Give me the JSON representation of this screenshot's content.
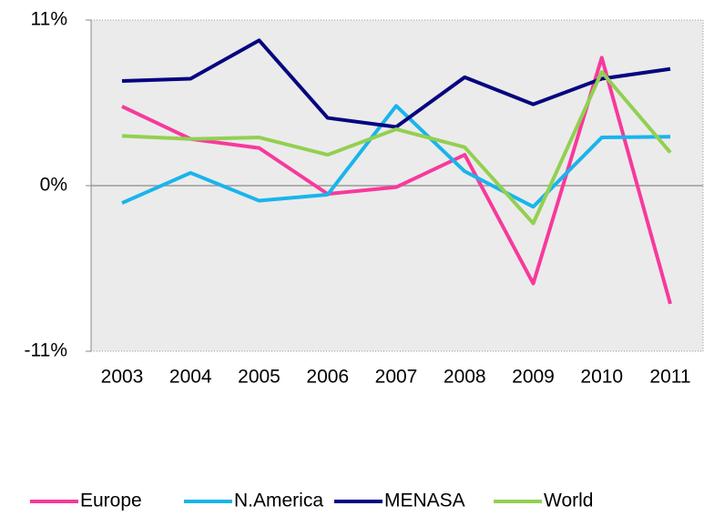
{
  "chart_data": {
    "type": "line",
    "categories": [
      "2003",
      "2004",
      "2005",
      "2006",
      "2007",
      "2008",
      "2009",
      "2010",
      "2011"
    ],
    "series": [
      {
        "name": "Europe",
        "color": "#f7399c",
        "values": [
          5.26,
          3.1,
          2.5,
          -0.55,
          -0.1,
          2.05,
          -6.5,
          8.5,
          -7.85
        ]
      },
      {
        "name": "N.America",
        "color": "#1ab4ec",
        "values": [
          -1.15,
          0.85,
          -1.0,
          -0.6,
          5.3,
          0.95,
          -1.4,
          3.2,
          3.25
        ]
      },
      {
        "name": "MENASA",
        "color": "#050580",
        "values": [
          6.95,
          7.1,
          9.65,
          4.5,
          3.9,
          7.2,
          5.4,
          7.1,
          7.75
        ]
      },
      {
        "name": "World",
        "color": "#92d050",
        "values": [
          3.3,
          3.1,
          3.2,
          2.05,
          3.75,
          2.55,
          -2.5,
          7.55,
          2.2
        ]
      }
    ],
    "ylim": [
      -11,
      11
    ],
    "yticks": [
      {
        "value": -11,
        "label": "-11%"
      },
      {
        "value": 0,
        "label": "0%"
      },
      {
        "value": 11,
        "label": "11%"
      }
    ],
    "legend": "bottom"
  }
}
